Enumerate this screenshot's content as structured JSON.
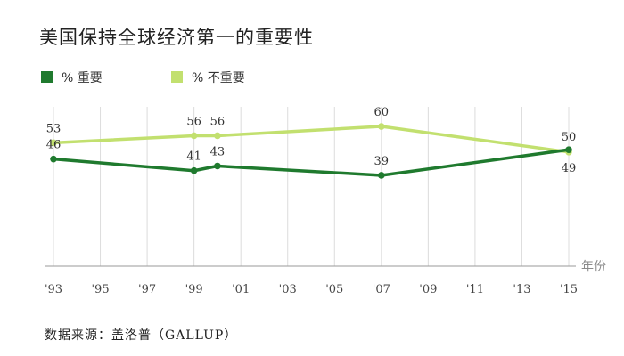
{
  "chart_data": {
    "type": "line",
    "title": "美国保持全球经济第一的重要性",
    "xlabel": "年份",
    "ylabel": "",
    "x": [
      1993,
      1999,
      2000,
      2007,
      2015
    ],
    "x_ticks": [
      1993,
      1995,
      1997,
      1999,
      2001,
      2003,
      2005,
      2007,
      2009,
      2011,
      2013,
      2015
    ],
    "x_tick_labels": [
      "'93",
      "'95",
      "'97",
      "'99",
      "'01",
      "'03",
      "'05",
      "'07",
      "'09",
      "'11",
      "'13",
      "'15"
    ],
    "xlim": [
      1993,
      2015
    ],
    "ylim": [
      0,
      73
    ],
    "grid": true,
    "legend_position": "top-left",
    "series": [
      {
        "name": "% 重要",
        "color": "#1f7a2e",
        "values": [
          46,
          41,
          43,
          39,
          50
        ]
      },
      {
        "name": "% 不重要",
        "color": "#c2e06f",
        "values": [
          53,
          56,
          56,
          60,
          49
        ]
      }
    ]
  },
  "source": "数据来源：盖洛普（GALLUP）"
}
